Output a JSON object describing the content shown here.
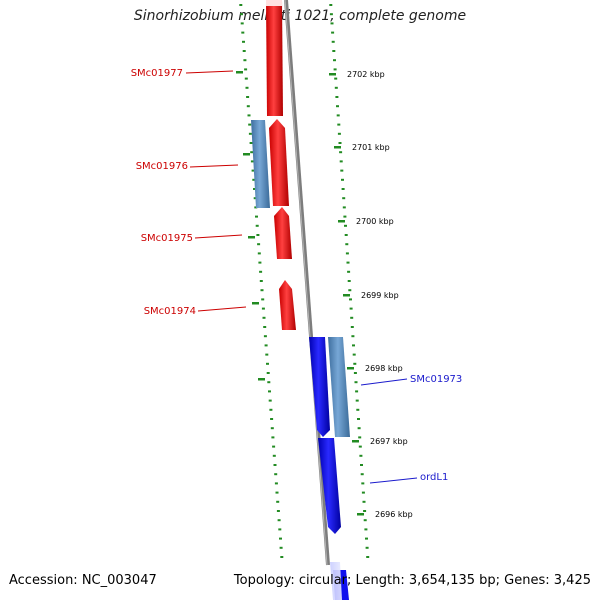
{
  "title": "Sinorhizobium meliloti 1021, complete genome",
  "footer": {
    "accession": "Accession: NC_003047",
    "topology": "Topology: circular; Length: 3,654,135 bp; Genes: 3,425"
  },
  "colors": {
    "forward_gene": "#ff1a1a",
    "reverse_gene": "#1a1aee",
    "cds_block": "#5b8fc7",
    "backbone": "#8c8c8c",
    "tick": "#228b22",
    "forward_label": "#cc0000",
    "reverse_label": "#1a1acc"
  },
  "scale_ticks": [
    {
      "label": "2702 kbp"
    },
    {
      "label": "2701 kbp"
    },
    {
      "label": "2700 kbp"
    },
    {
      "label": "2699 kbp"
    },
    {
      "label": "2698 kbp"
    },
    {
      "label": "2697 kbp"
    },
    {
      "label": "2696 kbp"
    }
  ],
  "gene_labels": [
    {
      "name": "SMc01977",
      "strand": "forward"
    },
    {
      "name": "SMc01976",
      "strand": "forward"
    },
    {
      "name": "SMc01975",
      "strand": "forward"
    },
    {
      "name": "SMc01974",
      "strand": "forward"
    },
    {
      "name": "SMc01973",
      "strand": "reverse"
    },
    {
      "name": "ordL1",
      "strand": "reverse"
    }
  ]
}
